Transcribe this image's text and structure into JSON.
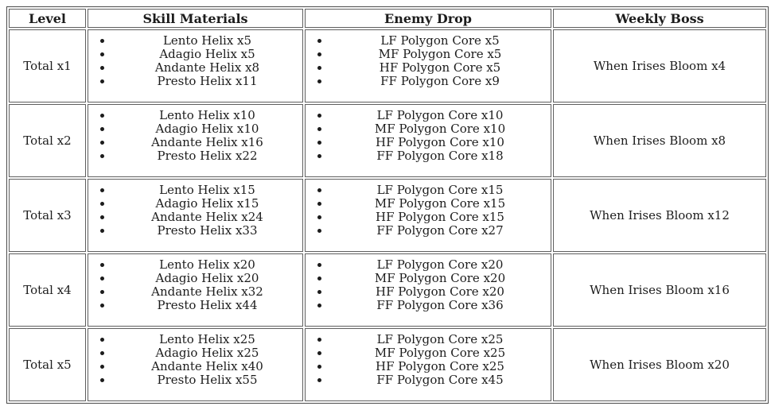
{
  "table": {
    "headers": [
      "Level",
      "Skill Materials",
      "Enemy Drop",
      "Weekly Boss"
    ],
    "rows": [
      {
        "level": "Total x1",
        "skill_materials": [
          "Lento Helix x5",
          "Adagio Helix x5",
          "Andante Helix x8",
          "Presto Helix x11"
        ],
        "enemy_drop": [
          "LF Polygon Core x5",
          "MF Polygon Core x5",
          "HF Polygon Core x5",
          "FF Polygon Core x9"
        ],
        "weekly_boss": "When Irises Bloom x4"
      },
      {
        "level": "Total x2",
        "skill_materials": [
          "Lento Helix x10",
          "Adagio Helix x10",
          "Andante Helix x16",
          "Presto Helix x22"
        ],
        "enemy_drop": [
          "LF Polygon Core x10",
          "MF Polygon Core x10",
          "HF Polygon Core x10",
          "FF Polygon Core x18"
        ],
        "weekly_boss": "When Irises Bloom x8"
      },
      {
        "level": "Total x3",
        "skill_materials": [
          "Lento Helix x15",
          "Adagio Helix x15",
          "Andante Helix x24",
          "Presto Helix x33"
        ],
        "enemy_drop": [
          "LF Polygon Core x15",
          "MF Polygon Core x15",
          "HF Polygon Core x15",
          "FF Polygon Core x27"
        ],
        "weekly_boss": "When Irises Bloom x12"
      },
      {
        "level": "Total x4",
        "skill_materials": [
          "Lento Helix x20",
          "Adagio Helix x20",
          "Andante Helix x32",
          "Presto Helix x44"
        ],
        "enemy_drop": [
          "LF Polygon Core x20",
          "MF Polygon Core x20",
          "HF Polygon Core x20",
          "FF Polygon Core x36"
        ],
        "weekly_boss": "When Irises Bloom x16"
      },
      {
        "level": "Total x5",
        "skill_materials": [
          "Lento Helix x25",
          "Adagio Helix x25",
          "Andante Helix x40",
          "Presto Helix x55"
        ],
        "enemy_drop": [
          "LF Polygon Core x25",
          "MF Polygon Core x25",
          "HF Polygon Core x25",
          "FF Polygon Core x45"
        ],
        "weekly_boss": "When Irises Bloom x20"
      }
    ]
  },
  "colors": {
    "border_outer": "#4a4a4a",
    "border_cell": "#5f5f5f",
    "text": "#1c1c1c",
    "background": "#ffffff"
  }
}
